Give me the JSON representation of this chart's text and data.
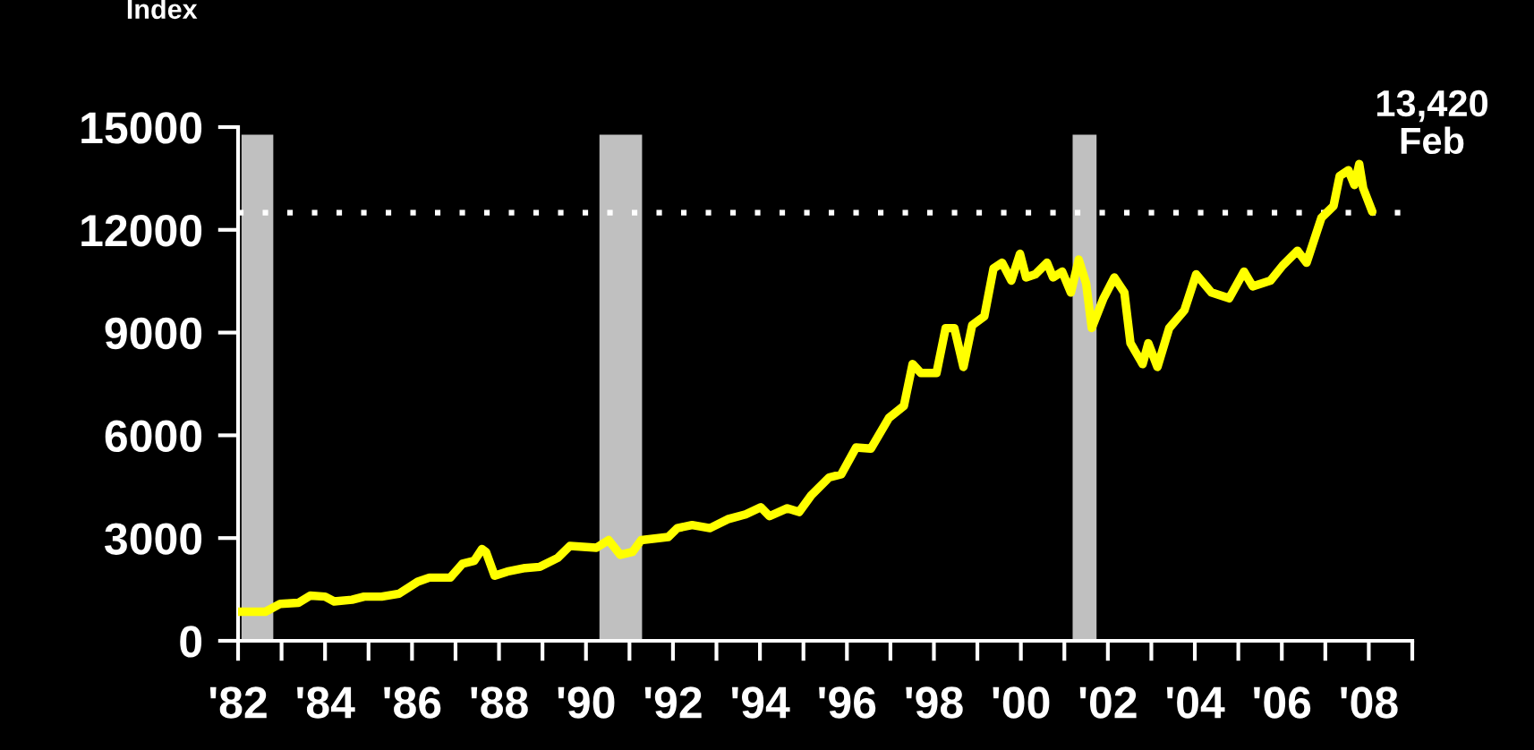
{
  "chart_data": {
    "type": "line",
    "ylabel": "Index",
    "annotations": [
      "13,420\nFeb"
    ],
    "xlim": [
      1982,
      2009
    ],
    "ylim": [
      0,
      15000
    ],
    "yticks": [
      0,
      3000,
      6000,
      9000,
      12000,
      15000
    ],
    "xticks": [
      {
        "value": 1982,
        "label": "'82"
      },
      {
        "value": 1983,
        "label": null
      },
      {
        "value": 1984,
        "label": "'84"
      },
      {
        "value": 1985,
        "label": null
      },
      {
        "value": 1986,
        "label": "'86"
      },
      {
        "value": 1987,
        "label": null
      },
      {
        "value": 1988,
        "label": "'88"
      },
      {
        "value": 1989,
        "label": null
      },
      {
        "value": 1990,
        "label": "'90"
      },
      {
        "value": 1991,
        "label": null
      },
      {
        "value": 1992,
        "label": "'92"
      },
      {
        "value": 1993,
        "label": null
      },
      {
        "value": 1994,
        "label": "'94"
      },
      {
        "value": 1995,
        "label": null
      },
      {
        "value": 1996,
        "label": "'96"
      },
      {
        "value": 1997,
        "label": null
      },
      {
        "value": 1998,
        "label": "'98"
      },
      {
        "value": 1999,
        "label": null
      },
      {
        "value": 2000,
        "label": "'00"
      },
      {
        "value": 2001,
        "label": null
      },
      {
        "value": 2002,
        "label": "'02"
      },
      {
        "value": 2003,
        "label": null
      },
      {
        "value": 2004,
        "label": "'04"
      },
      {
        "value": 2005,
        "label": null
      },
      {
        "value": 2006,
        "label": "'06"
      },
      {
        "value": 2007,
        "label": null
      },
      {
        "value": 2008,
        "label": "'08"
      },
      {
        "value": 2009,
        "label": null
      }
    ],
    "grid": false,
    "legend": false,
    "marker": "none",
    "line_style": "solid",
    "bands": [
      {
        "axis": "x",
        "from": 1982.08,
        "to": 1982.81,
        "color": "#c0c0c0"
      },
      {
        "axis": "x",
        "from": 1990.31,
        "to": 1991.29,
        "color": "#c0c0c0"
      },
      {
        "axis": "x",
        "from": 2001.19,
        "to": 2001.74,
        "color": "#c0c0c0"
      }
    ],
    "ref_lines": [
      {
        "axis": "y",
        "value": 12500,
        "color": "#ffffff",
        "line_style": "dotted"
      }
    ],
    "series": [
      {
        "color": "#ffff00",
        "x": [
          1982.0,
          1982.63,
          1982.97,
          1983.39,
          1983.66,
          1984.0,
          1984.21,
          1984.62,
          1984.9,
          1985.3,
          1985.7,
          1986.13,
          1986.4,
          1986.88,
          1987.16,
          1987.43,
          1987.61,
          1987.7,
          1987.9,
          1988.19,
          1988.6,
          1988.94,
          1989.35,
          1989.63,
          1990.24,
          1990.52,
          1990.79,
          1991.07,
          1991.27,
          1991.89,
          1992.1,
          1992.44,
          1992.85,
          1993.26,
          1993.67,
          1994.02,
          1994.22,
          1994.63,
          1994.9,
          1995.18,
          1995.59,
          1995.87,
          1996.21,
          1996.55,
          1996.97,
          1997.31,
          1997.51,
          1997.7,
          1998.06,
          1998.27,
          1998.47,
          1998.68,
          1998.88,
          1999.16,
          1999.37,
          1999.57,
          1999.78,
          1999.98,
          2000.12,
          2000.33,
          2000.6,
          2000.74,
          2000.95,
          2001.15,
          2001.33,
          2001.5,
          2001.63,
          2001.9,
          2002.15,
          2002.38,
          2002.52,
          2002.8,
          2002.93,
          2003.14,
          2003.41,
          2003.76,
          2004.03,
          2004.38,
          2004.79,
          2005.13,
          2005.33,
          2005.74,
          2006.02,
          2006.36,
          2006.57,
          2006.91,
          2007.19,
          2007.33,
          2007.53,
          2007.67,
          2007.78,
          2007.87,
          2008.08
        ],
        "values": [
          850,
          850,
          1080,
          1110,
          1320,
          1290,
          1150,
          1200,
          1290,
          1290,
          1375,
          1725,
          1845,
          1845,
          2250,
          2335,
          2680,
          2595,
          1900,
          2020,
          2125,
          2160,
          2420,
          2770,
          2720,
          2940,
          2510,
          2595,
          2940,
          3030,
          3290,
          3380,
          3290,
          3550,
          3690,
          3900,
          3640,
          3870,
          3760,
          4250,
          4770,
          4860,
          5645,
          5610,
          6515,
          6860,
          8080,
          7820,
          7820,
          9130,
          9130,
          7995,
          9215,
          9475,
          10870,
          11040,
          10520,
          11300,
          10610,
          10700,
          11040,
          10610,
          10780,
          10170,
          11130,
          10440,
          9130,
          10000,
          10610,
          10170,
          8690,
          8080,
          8690,
          7995,
          9130,
          9650,
          10700,
          10170,
          10000,
          10780,
          10350,
          10520,
          10960,
          11390,
          11040,
          12350,
          12700,
          13570,
          13740,
          13310,
          13920,
          13220,
          12530
        ]
      }
    ]
  }
}
